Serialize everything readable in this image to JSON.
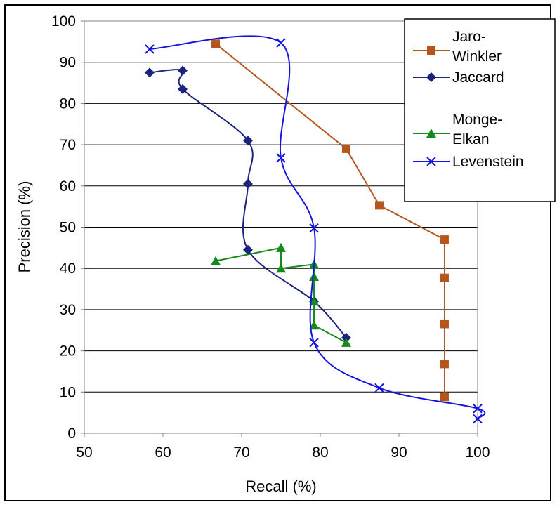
{
  "chart_data": {
    "type": "line",
    "xlabel": "Recall (%)",
    "ylabel": "Precision (%)",
    "xlim": [
      50,
      100
    ],
    "ylim": [
      0,
      100
    ],
    "xticks": [
      50,
      60,
      70,
      80,
      90,
      100
    ],
    "yticks": [
      0,
      10,
      20,
      30,
      40,
      50,
      60,
      70,
      80,
      90,
      100
    ],
    "grid": "horizontal",
    "legend_position": "top-right",
    "series": [
      {
        "name": "Jaro-Winkler",
        "name_lines": [
          "Jaro-",
          "Winkler"
        ],
        "color": "#b5561e",
        "marker": "square",
        "smooth": false,
        "points": [
          [
            66.7,
            94.5
          ],
          [
            83.3,
            69.0
          ],
          [
            87.5,
            55.3
          ],
          [
            95.8,
            47.0
          ],
          [
            95.8,
            37.7
          ],
          [
            95.8,
            26.5
          ],
          [
            95.8,
            16.8
          ],
          [
            95.8,
            8.8
          ]
        ]
      },
      {
        "name": "Jaccard",
        "name_lines": [
          "Jaccard"
        ],
        "color": "#1a237e",
        "marker": "diamond",
        "smooth": true,
        "points": [
          [
            58.3,
            87.5
          ],
          [
            62.5,
            88.0
          ],
          [
            62.5,
            83.5
          ],
          [
            70.8,
            71.0
          ],
          [
            70.8,
            60.5
          ],
          [
            70.8,
            44.5
          ],
          [
            79.2,
            32.0
          ],
          [
            83.3,
            23.2
          ]
        ]
      },
      {
        "name": "Monge-Elkan",
        "name_lines": [
          "Monge-",
          "Elkan"
        ],
        "color": "#158a1c",
        "marker": "triangle",
        "smooth": false,
        "points": [
          [
            66.7,
            41.8
          ],
          [
            75.0,
            45.0
          ],
          [
            75.0,
            40.0
          ],
          [
            79.2,
            41.0
          ],
          [
            79.2,
            38.0
          ],
          [
            79.2,
            32.0
          ],
          [
            79.2,
            26.2
          ],
          [
            83.3,
            22.0
          ]
        ]
      },
      {
        "name": "Levenstein",
        "name_lines": [
          "Levenstein"
        ],
        "color": "#1414e0",
        "marker": "x",
        "smooth": true,
        "points": [
          [
            58.3,
            93.2
          ],
          [
            75.0,
            94.7
          ],
          [
            75.0,
            66.8
          ],
          [
            79.2,
            49.8
          ],
          [
            79.2,
            22.0
          ],
          [
            87.5,
            11.0
          ],
          [
            100.0,
            6.0
          ],
          [
            100.0,
            3.5
          ]
        ]
      }
    ]
  }
}
